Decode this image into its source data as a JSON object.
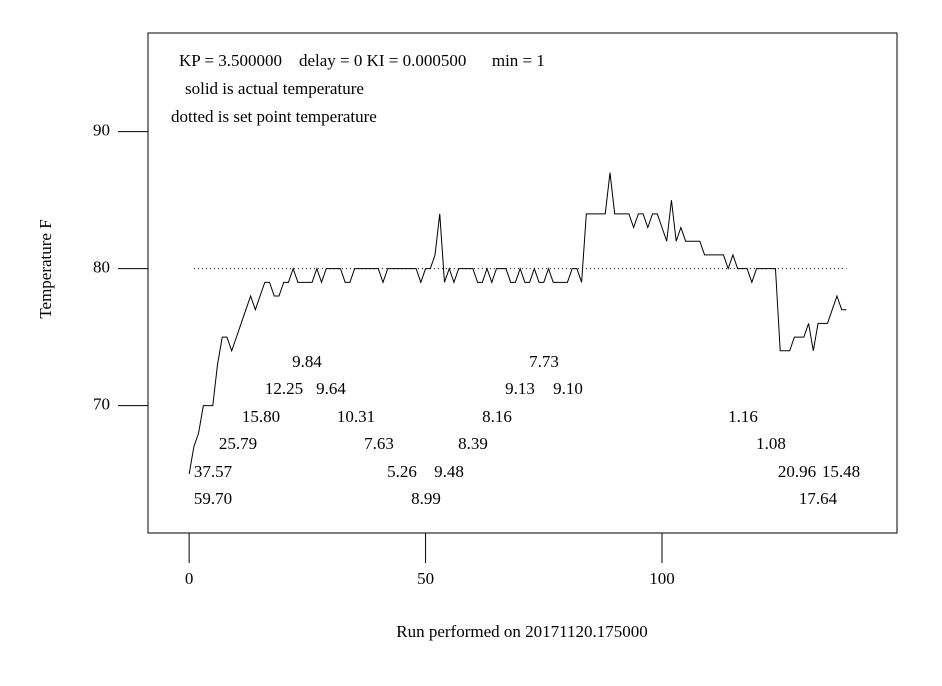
{
  "chart_data": {
    "type": "line",
    "xlabel": "Run performed on 20171120.175000",
    "ylabel": "Temperature F",
    "notes": [
      "KP = 3.500000    delay = 0 KI = 0.000500      min = 1",
      "solid is actual temperature",
      "dotted is set point temperature"
    ],
    "annotations": [
      "9.84",
      "12.25",
      "9.64",
      "15.80",
      "10.31",
      "25.79",
      "7.63",
      "37.57",
      "5.26",
      "9.48",
      "59.70",
      "8.99",
      "7.73",
      "9.13",
      "9.10",
      "8.16",
      "8.39",
      "1.16",
      "1.08",
      "20.96",
      "15.48",
      "17.64"
    ],
    "xlim": [
      -8.7,
      149.7
    ],
    "ylim": [
      60.7,
      97.2
    ],
    "xticks": [
      0,
      50,
      100
    ],
    "yticks": [
      70,
      80,
      90
    ],
    "series": [
      {
        "style": "solid",
        "color": "#000000",
        "x": [
          0,
          1,
          2,
          3,
          4,
          5,
          6,
          7,
          8,
          9,
          10,
          11,
          12,
          13,
          14,
          15,
          16,
          17,
          18,
          19,
          20,
          21,
          22,
          23,
          24,
          25,
          26,
          27,
          28,
          29,
          30,
          31,
          32,
          33,
          34,
          35,
          36,
          37,
          38,
          39,
          40,
          41,
          42,
          43,
          44,
          45,
          46,
          47,
          48,
          49,
          50,
          51,
          52,
          53,
          54,
          55,
          56,
          57,
          58,
          59,
          60,
          61,
          62,
          63,
          64,
          65,
          66,
          67,
          68,
          69,
          70,
          71,
          72,
          73,
          74,
          75,
          76,
          77,
          78,
          79,
          80,
          81,
          82,
          83,
          84,
          85,
          86,
          87,
          88,
          89,
          90,
          91,
          92,
          93,
          94,
          95,
          96,
          97,
          98,
          99,
          100,
          101,
          102,
          103,
          104,
          105,
          106,
          107,
          108,
          109,
          110,
          111,
          112,
          113,
          114,
          115,
          116,
          117,
          118,
          119,
          120,
          121,
          122,
          123,
          124,
          125,
          126,
          127,
          128,
          129,
          130,
          131,
          132,
          133,
          134,
          135,
          136,
          137,
          138,
          139
        ],
        "values": [
          65,
          67,
          68,
          70,
          70,
          70,
          73,
          75,
          75,
          74,
          75,
          76,
          77,
          78,
          77,
          78,
          79,
          79,
          78,
          78,
          79,
          79,
          80,
          79,
          79,
          79,
          79,
          80,
          79,
          80,
          80,
          80,
          80,
          79,
          79,
          80,
          80,
          80,
          80,
          80,
          80,
          79,
          80,
          80,
          80,
          80,
          80,
          80,
          80,
          79,
          80,
          80,
          81,
          84,
          79,
          80,
          79,
          80,
          80,
          80,
          80,
          79,
          79,
          80,
          79,
          80,
          80,
          80,
          79,
          79,
          80,
          79,
          79,
          80,
          79,
          79,
          80,
          79,
          79,
          79,
          79,
          80,
          80,
          79,
          84,
          84,
          84,
          84,
          84,
          87,
          84,
          84,
          84,
          84,
          83,
          84,
          84,
          83,
          84,
          84,
          83,
          82,
          85,
          82,
          83,
          82,
          82,
          82,
          82,
          81,
          81,
          81,
          81,
          81,
          80,
          81,
          80,
          80,
          80,
          79,
          80,
          80,
          80,
          80,
          80,
          74,
          74,
          74,
          75,
          75,
          75,
          76,
          74,
          76,
          76,
          76,
          77,
          78,
          77,
          77
        ]
      },
      {
        "style": "dotted",
        "color": "#000000",
        "x": [
          1,
          139
        ],
        "values": [
          80,
          80
        ]
      }
    ]
  }
}
